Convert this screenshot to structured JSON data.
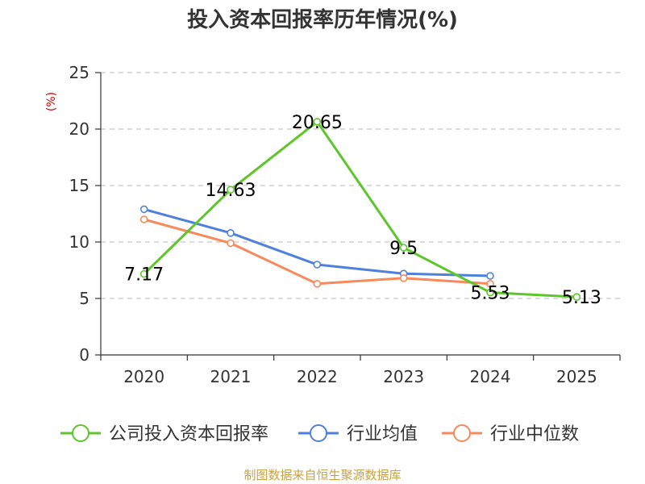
{
  "chart_data": {
    "type": "line",
    "title": "投入资本回报率历年情况(%)",
    "ylabel": "(%)",
    "xlabel": "",
    "categories": [
      "2020",
      "2021",
      "2022",
      "2023",
      "2024",
      "2025"
    ],
    "ylim": [
      0,
      25
    ],
    "yticks": [
      0,
      5,
      10,
      15,
      20,
      25
    ],
    "grid": true,
    "legend_position": "bottom",
    "series": [
      {
        "name": "公司投入资本回报率",
        "color": "#5dc62a",
        "values": [
          7.17,
          14.63,
          20.65,
          9.5,
          5.53,
          5.13
        ],
        "labels": [
          "7.17",
          "14.63",
          "20.65",
          "9.5",
          "5.53",
          "5.13"
        ]
      },
      {
        "name": "行业均值",
        "color": "#4e80dc",
        "values": [
          12.9,
          10.8,
          8.0,
          7.2,
          7.0,
          null
        ]
      },
      {
        "name": "行业中位数",
        "color": "#f7895a",
        "values": [
          12.0,
          9.9,
          6.3,
          6.8,
          6.3,
          null
        ]
      }
    ]
  },
  "source": "制图数据来自恒生聚源数据库"
}
